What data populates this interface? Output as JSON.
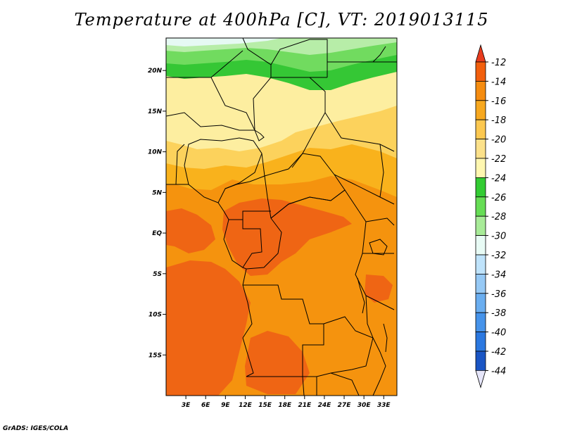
{
  "title": "Temperature at 400hPa [C], VT: 2019013115",
  "credit": "GrADS: IGES/COLA",
  "map": {
    "lon_range": [
      0,
      35
    ],
    "lat_range": [
      -20,
      24
    ],
    "lat_ticks": [
      {
        "lat": 20,
        "label": "20N"
      },
      {
        "lat": 15,
        "label": "15N"
      },
      {
        "lat": 10,
        "label": "10N"
      },
      {
        "lat": 5,
        "label": "5N"
      },
      {
        "lat": 0,
        "label": "EQ"
      },
      {
        "lat": -5,
        "label": "5S"
      },
      {
        "lat": -10,
        "label": "10S"
      },
      {
        "lat": -15,
        "label": "15S"
      }
    ],
    "lon_ticks": [
      {
        "lon": 3,
        "label": "3E"
      },
      {
        "lon": 6,
        "label": "6E"
      },
      {
        "lon": 9,
        "label": "9E"
      },
      {
        "lon": 12,
        "label": "12E"
      },
      {
        "lon": 15,
        "label": "15E"
      },
      {
        "lon": 18,
        "label": "18E"
      },
      {
        "lon": 21,
        "label": "21E"
      },
      {
        "lon": 24,
        "label": "24E"
      },
      {
        "lon": 27,
        "label": "27E"
      },
      {
        "lon": 30,
        "label": "30E"
      },
      {
        "lon": 33,
        "label": "33E"
      }
    ]
  },
  "colorbar": {
    "labels": [
      "-12",
      "-14",
      "-16",
      "-18",
      "-20",
      "-22",
      "-24",
      "-26",
      "-28",
      "-30",
      "-32",
      "-34",
      "-36",
      "-38",
      "-40",
      "-42",
      "-44"
    ],
    "colors": {
      "top_triangle": "#e83c1e",
      "bottom_triangle": "#e6e6fa",
      "bands": [
        "#f25f0d",
        "#f58c10",
        "#f7a81f",
        "#fcc850",
        "#fce18a",
        "#fff7b0",
        "#33cc33",
        "#66dd55",
        "#a8eb98",
        "#e8fbf5",
        "#bfe3fb",
        "#96c9f5",
        "#6aaef0",
        "#4693ea",
        "#2b78e0",
        "#1a55c4",
        "#101a6a"
      ]
    }
  },
  "field_colors": {
    "ge_minus12": "#ef6514",
    "m12_m14": "#ef6514",
    "m14_m16": "#f5930e",
    "m16_m18": "#f9b21c",
    "m18_m20": "#fcd25c",
    "m20_m22": "#fdeea0",
    "m22_m24": "#35c735",
    "m24_m26": "#71db5f",
    "m26_m28": "#b7eda8",
    "m28_m30": "#e6f9f3"
  }
}
